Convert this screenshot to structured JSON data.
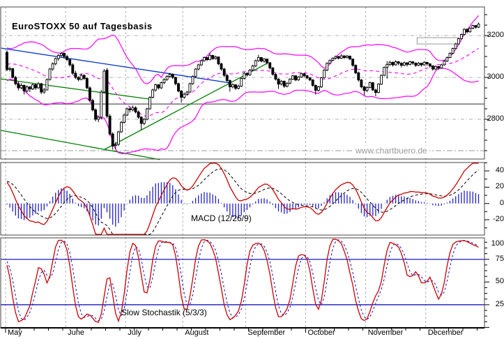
{
  "title": "EuroSTOXX 50 auf Tagesbasis",
  "watermark": "www.chartbuero.de",
  "panels": {
    "macd_label": "MACD (12/26/9)",
    "stoch_label": "Slow Stochastik (5/3/3)"
  },
  "colors": {
    "band": "#ff00ff",
    "trend_blue": "#0033cc",
    "trend_green": "#008000",
    "macd_line": "#cc0000",
    "signal_line": "#000000",
    "histogram": "#2222cc",
    "stoch_k": "#cc0000",
    "stoch_d": "#2222cc",
    "level_line": "#0000bb",
    "grid": "#b0b0b0",
    "frame": "#444444",
    "support": "#555555",
    "box": "#999999",
    "candle_up_fill": "#ffffff",
    "candle_down_fill": "#000000",
    "watermark": "#999999"
  },
  "chart_data": {
    "type": "candlestick",
    "title": "EuroSTOXX 50 auf Tagesbasis",
    "months": [
      "May",
      "June",
      "July",
      "August",
      "September",
      "October",
      "November",
      "December"
    ],
    "month_start_day": [
      0,
      21,
      42,
      62,
      84,
      105,
      126,
      147
    ],
    "price_axis": {
      "ticks": [
        3200,
        3000,
        2800
      ],
      "minor_step": 50,
      "grid_levels": [
        3200,
        3000,
        2800
      ],
      "dashdot_level": 2650,
      "support_level": 2873,
      "ylim": [
        2610,
        3337
      ]
    },
    "macd_axis": {
      "ticks": [
        40,
        20,
        0,
        -20
      ],
      "minor_step": 10,
      "ylim": [
        -39,
        50
      ],
      "params": "12/26/9"
    },
    "stoch_axis": {
      "ticks": [
        100,
        75,
        50,
        25
      ],
      "level_lines": [
        75,
        25
      ],
      "ylim": [
        0,
        100
      ],
      "params": "5/3/3"
    },
    "annotations": {
      "resistance_box": {
        "day_from": 143.5,
        "day_to": 158,
        "price_from": 3160,
        "price_to": 3190
      },
      "trendlines": [
        {
          "name": "blue-downtrend",
          "color": "blue",
          "d1": -2.0,
          "p1": 3140,
          "d2": 78.5,
          "p2": 2973
        },
        {
          "name": "green-fan-upper",
          "color": "green",
          "d1": -2.2,
          "p1": 2993,
          "d2": 49.5,
          "p2": 2897
        },
        {
          "name": "green-fan-lower",
          "color": "green",
          "d1": -2.2,
          "p1": 2747,
          "d2": 53.5,
          "p2": 2607
        },
        {
          "name": "green-uptrend",
          "color": "green",
          "d1": 34.0,
          "p1": 2655,
          "d2": 91.0,
          "p2": 3067
        }
      ]
    },
    "pre_period_closes": [
      2980,
      2995,
      3010,
      3000,
      3020,
      3035,
      3025,
      3045,
      3060,
      3050,
      3070,
      3085,
      3075,
      3090,
      3100,
      3095,
      3110,
      3105,
      3115,
      3125
    ],
    "candles": [
      [
        3120,
        3130,
        3030,
        3037
      ],
      [
        3040,
        3052,
        3028,
        3042
      ],
      [
        3042,
        3046,
        2996,
        3000
      ],
      [
        3000,
        3008,
        2962,
        2970
      ],
      [
        2970,
        2980,
        2938,
        2950
      ],
      [
        2950,
        2972,
        2944,
        2962
      ],
      [
        2962,
        2966,
        2918,
        2935
      ],
      [
        2935,
        2962,
        2928,
        2955
      ],
      [
        2955,
        2958,
        2930,
        2945
      ],
      [
        2945,
        2972,
        2940,
        2965
      ],
      [
        2965,
        2970,
        2940,
        2950
      ],
      [
        2950,
        2978,
        2946,
        2970
      ],
      [
        2970,
        2974,
        2920,
        2930
      ],
      [
        2930,
        2950,
        2922,
        2940
      ],
      [
        2940,
        2995,
        2938,
        2990
      ],
      [
        2990,
        3045,
        2985,
        3040
      ],
      [
        3040,
        3072,
        3032,
        3065
      ],
      [
        3065,
        3095,
        3058,
        3090
      ],
      [
        3090,
        3112,
        3080,
        3105
      ],
      [
        3105,
        3122,
        3096,
        3115
      ],
      [
        3115,
        3120,
        3090,
        3100
      ],
      [
        3100,
        3108,
        3078,
        3085
      ],
      [
        3085,
        3092,
        3052,
        3060
      ],
      [
        3060,
        3068,
        3012,
        3020
      ],
      [
        3020,
        3032,
        2992,
        3000
      ],
      [
        3000,
        3005,
        2982,
        2990
      ],
      [
        2990,
        3018,
        2986,
        3010
      ],
      [
        3010,
        3015,
        2988,
        2995
      ],
      [
        2995,
        3000,
        2944,
        2950
      ],
      [
        2950,
        2958,
        2882,
        2890
      ],
      [
        2890,
        2898,
        2838,
        2845
      ],
      [
        2845,
        2852,
        2790,
        2800
      ],
      [
        2800,
        2818,
        2786,
        2810
      ],
      [
        2810,
        2940,
        2800,
        2930
      ],
      [
        2930,
        3040,
        2925,
        3030
      ],
      [
        3035,
        3045,
        2805,
        2815
      ],
      [
        2815,
        2825,
        2722,
        2730
      ],
      [
        2730,
        2738,
        2655,
        2672
      ],
      [
        2675,
        2692,
        2658,
        2678
      ],
      [
        2680,
        2745,
        2672,
        2740
      ],
      [
        2740,
        2792,
        2735,
        2785
      ],
      [
        2785,
        2828,
        2780,
        2820
      ],
      [
        2820,
        2856,
        2815,
        2850
      ],
      [
        2850,
        2860,
        2832,
        2845
      ],
      [
        2845,
        2866,
        2838,
        2855
      ],
      [
        2855,
        2862,
        2828,
        2835
      ],
      [
        2835,
        2842,
        2802,
        2810
      ],
      [
        2810,
        2815,
        2750,
        2780
      ],
      [
        2780,
        2806,
        2772,
        2800
      ],
      [
        2800,
        2855,
        2795,
        2850
      ],
      [
        2850,
        2910,
        2846,
        2905
      ],
      [
        2905,
        2946,
        2900,
        2940
      ],
      [
        2940,
        2970,
        2932,
        2965
      ],
      [
        2965,
        2968,
        2942,
        2950
      ],
      [
        2950,
        2980,
        2945,
        2975
      ],
      [
        2975,
        2996,
        2968,
        2990
      ],
      [
        2990,
        3010,
        2984,
        3005
      ],
      [
        3005,
        3022,
        2998,
        3015
      ],
      [
        3015,
        3018,
        2992,
        3000
      ],
      [
        3000,
        3004,
        2962,
        2970
      ],
      [
        2970,
        2976,
        2928,
        2935
      ],
      [
        2935,
        2940,
        2880,
        2905
      ],
      [
        2905,
        2928,
        2898,
        2920
      ],
      [
        2920,
        2936,
        2912,
        2930
      ],
      [
        2930,
        2975,
        2926,
        2970
      ],
      [
        2970,
        3010,
        2965,
        3005
      ],
      [
        3005,
        3045,
        3000,
        3040
      ],
      [
        3040,
        3065,
        3034,
        3060
      ],
      [
        3060,
        3085,
        3055,
        3080
      ],
      [
        3080,
        3100,
        3075,
        3095
      ],
      [
        3095,
        3098,
        3078,
        3085
      ],
      [
        3085,
        3118,
        3082,
        3105
      ],
      [
        3105,
        3108,
        3084,
        3090
      ],
      [
        3090,
        3104,
        3085,
        3098
      ],
      [
        3098,
        3100,
        3058,
        3065
      ],
      [
        3065,
        3070,
        3032,
        3040
      ],
      [
        3040,
        3046,
        3002,
        3010
      ],
      [
        3010,
        3016,
        2978,
        2985
      ],
      [
        2985,
        2990,
        2932,
        2955
      ],
      [
        2955,
        2972,
        2948,
        2965
      ],
      [
        2965,
        2968,
        2940,
        2948
      ],
      [
        2948,
        2966,
        2942,
        2958
      ],
      [
        2958,
        3000,
        2954,
        2995
      ],
      [
        2995,
        3026,
        2990,
        3020
      ],
      [
        3020,
        3024,
        3004,
        3012
      ],
      [
        3012,
        3040,
        3008,
        3035
      ],
      [
        3035,
        3060,
        3030,
        3055
      ],
      [
        3055,
        3085,
        3050,
        3080
      ],
      [
        3080,
        3108,
        3075,
        3095
      ],
      [
        3095,
        3098,
        3072,
        3078
      ],
      [
        3078,
        3092,
        3070,
        3088
      ],
      [
        3088,
        3090,
        3062,
        3070
      ],
      [
        3070,
        3074,
        3038,
        3045
      ],
      [
        3045,
        3050,
        3008,
        3015
      ],
      [
        3015,
        3020,
        2985,
        2992
      ],
      [
        2992,
        2996,
        2945,
        2968
      ],
      [
        2968,
        2988,
        2962,
        2982
      ],
      [
        2982,
        2985,
        2950,
        2958
      ],
      [
        2958,
        2978,
        2952,
        2972
      ],
      [
        2972,
        2996,
        2968,
        2992
      ],
      [
        2992,
        3012,
        2988,
        3008
      ],
      [
        3008,
        3010,
        2982,
        2988
      ],
      [
        2988,
        3006,
        2984,
        3002
      ],
      [
        3002,
        3022,
        2998,
        3018
      ],
      [
        3018,
        3020,
        3002,
        3008
      ],
      [
        3008,
        3012,
        2992,
        2998
      ],
      [
        2998,
        3002,
        2982,
        2988
      ],
      [
        2988,
        2992,
        2955,
        2962
      ],
      [
        2962,
        2966,
        2918,
        2938
      ],
      [
        2938,
        2960,
        2932,
        2955
      ],
      [
        2955,
        3002,
        2950,
        2998
      ],
      [
        2998,
        3040,
        2995,
        3035
      ],
      [
        3035,
        3072,
        3030,
        3068
      ],
      [
        3068,
        3086,
        3062,
        3082
      ],
      [
        3082,
        3096,
        3078,
        3092
      ],
      [
        3092,
        3104,
        3086,
        3100
      ],
      [
        3100,
        3102,
        3086,
        3092
      ],
      [
        3092,
        3112,
        3088,
        3103
      ],
      [
        3103,
        3106,
        3088,
        3095
      ],
      [
        3095,
        3108,
        3090,
        3102
      ],
      [
        3102,
        3104,
        3082,
        3088
      ],
      [
        3088,
        3090,
        3050,
        3058
      ],
      [
        3058,
        3062,
        3015,
        3022
      ],
      [
        3022,
        3028,
        2980,
        2988
      ],
      [
        2988,
        2992,
        2948,
        2955
      ],
      [
        2955,
        2960,
        2915,
        2938
      ],
      [
        2938,
        2958,
        2930,
        2952
      ],
      [
        2952,
        2980,
        2948,
        2975
      ],
      [
        2975,
        2978,
        2935,
        2940
      ],
      [
        2940,
        2946,
        2910,
        2928
      ],
      [
        2928,
        2972,
        2924,
        2968
      ],
      [
        2968,
        3014,
        2964,
        3010
      ],
      [
        3010,
        3052,
        3006,
        3048
      ],
      [
        3048,
        3078,
        2995,
        3062
      ],
      [
        3062,
        3080,
        3055,
        3072
      ],
      [
        3072,
        3076,
        3052,
        3060
      ],
      [
        3060,
        3082,
        3056,
        3075
      ],
      [
        3075,
        3078,
        3058,
        3068
      ],
      [
        3068,
        3072,
        3048,
        3058
      ],
      [
        3058,
        3076,
        3054,
        3070
      ],
      [
        3070,
        3072,
        3052,
        3062
      ],
      [
        3062,
        3080,
        3058,
        3075
      ],
      [
        3075,
        3078,
        3060,
        3068
      ],
      [
        3068,
        3072,
        3050,
        3058
      ],
      [
        3058,
        3074,
        3054,
        3068
      ],
      [
        3068,
        3070,
        3052,
        3060
      ],
      [
        3060,
        3078,
        3056,
        3072
      ],
      [
        3072,
        3075,
        3056,
        3065
      ],
      [
        3065,
        3068,
        3046,
        3055
      ],
      [
        3055,
        3058,
        3032,
        3040
      ],
      [
        3040,
        3058,
        3036,
        3052
      ],
      [
        3052,
        3056,
        3036,
        3045
      ],
      [
        3045,
        3065,
        3042,
        3060
      ],
      [
        3060,
        3082,
        3056,
        3078
      ],
      [
        3078,
        3100,
        3074,
        3095
      ],
      [
        3095,
        3120,
        3092,
        3115
      ],
      [
        3115,
        3142,
        3110,
        3138
      ],
      [
        3138,
        3165,
        3134,
        3160
      ],
      [
        3160,
        3190,
        3156,
        3185
      ],
      [
        3185,
        3210,
        3180,
        3205
      ],
      [
        3205,
        3235,
        3200,
        3230
      ],
      [
        3230,
        3234,
        3210,
        3218
      ],
      [
        3218,
        3240,
        3214,
        3235
      ],
      [
        3235,
        3252,
        3230,
        3248
      ],
      [
        3248,
        3250,
        3232,
        3240
      ],
      [
        3240,
        3262,
        3236,
        3255
      ]
    ]
  }
}
